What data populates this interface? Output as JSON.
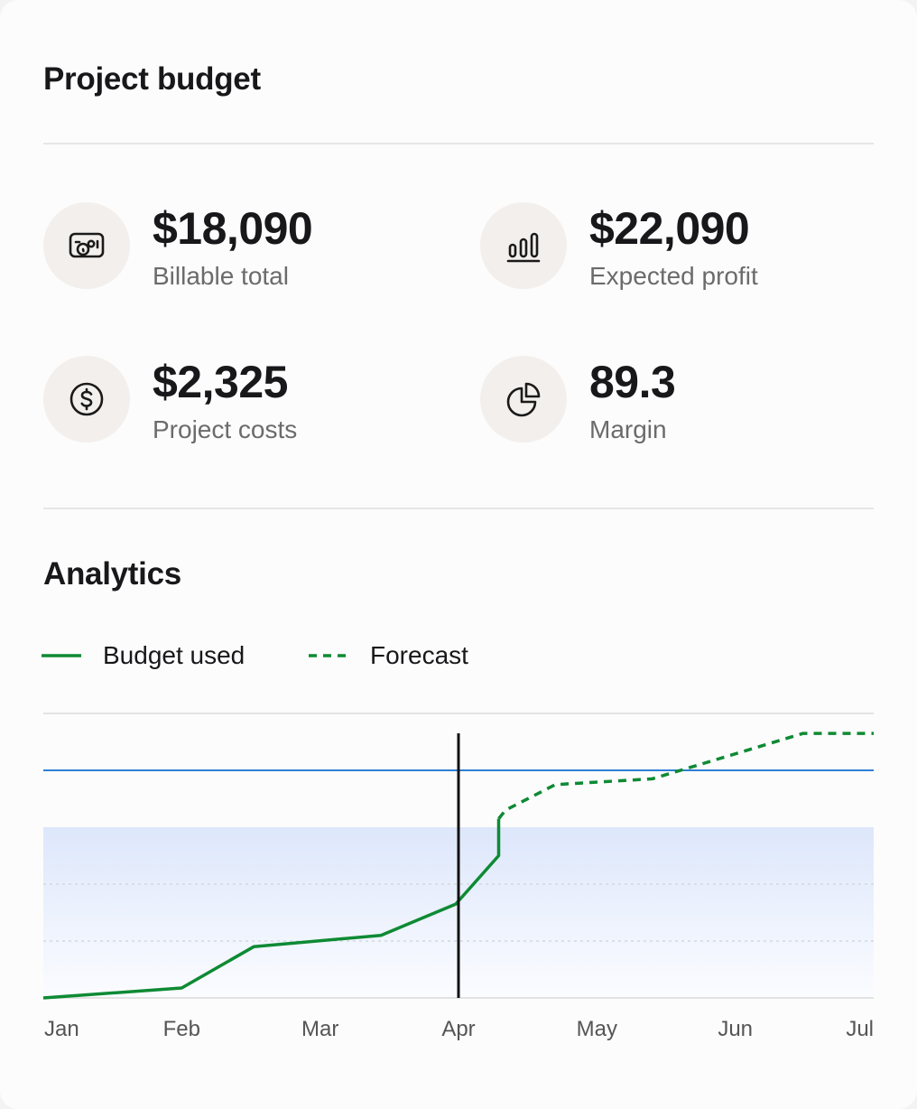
{
  "header": {
    "title": "Project budget"
  },
  "stats": [
    {
      "value": "$18,090",
      "label": "Billable total",
      "icon": "billable-icon"
    },
    {
      "value": "$22,090",
      "label": "Expected profit",
      "icon": "bar-chart-icon"
    },
    {
      "value": "$2,325",
      "label": "Project costs",
      "icon": "dollar-coin-icon"
    },
    {
      "value": "89.3",
      "label": "Margin",
      "icon": "pie-chart-icon"
    }
  ],
  "analytics": {
    "title": "Analytics",
    "legend": [
      {
        "label": "Budget used",
        "style": "solid"
      },
      {
        "label": "Forecast",
        "style": "dashed"
      }
    ]
  },
  "colors": {
    "line": "#0e8a34",
    "budget_line": "#2f7fd6",
    "marker": "#111111",
    "band_top": "#dde7fb",
    "band_bottom": "#fbfcff",
    "icon_bg": "#f3efec"
  },
  "chart_data": {
    "type": "line",
    "categories": [
      "Jan",
      "Feb",
      "Mar",
      "Apr",
      "May",
      "Jun",
      "Jul"
    ],
    "ylim": [
      0,
      100
    ],
    "budget_level": 80,
    "band_top": 60,
    "today": 3,
    "series": [
      {
        "name": "Budget used",
        "style": "solid",
        "points": [
          [
            0,
            0
          ],
          [
            1,
            3.5
          ],
          [
            1.52,
            18
          ],
          [
            2.44,
            22
          ],
          [
            2.98,
            33
          ],
          [
            3.29,
            50
          ],
          [
            3.29,
            63
          ]
        ]
      },
      {
        "name": "Forecast",
        "style": "dashed",
        "points": [
          [
            3.29,
            63
          ],
          [
            3.34,
            66
          ],
          [
            3.7,
            75
          ],
          [
            4.4,
            77
          ],
          [
            5.49,
            93
          ],
          [
            6,
            93
          ]
        ]
      }
    ]
  }
}
